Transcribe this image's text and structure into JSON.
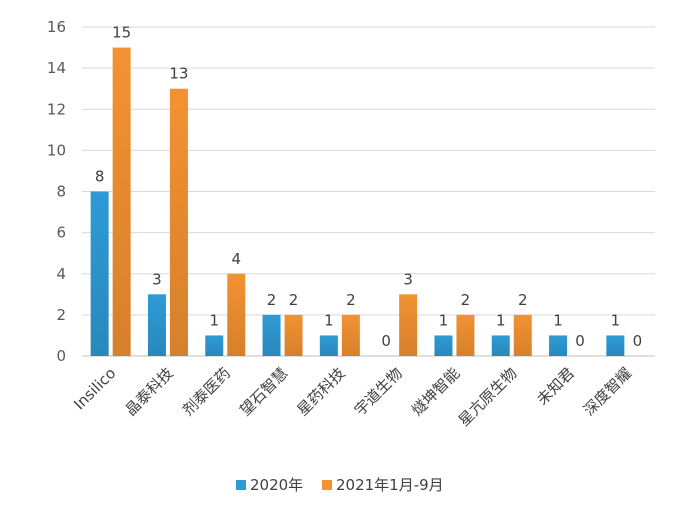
{
  "chart_data": {
    "type": "bar",
    "categories": [
      "Insilico",
      "晶泰科技",
      "剂泰医药",
      "望石智慧",
      "星药科技",
      "宇道生物",
      "燧坤智能",
      "星亢原生物",
      "未知君",
      "深度智耀"
    ],
    "series": [
      {
        "name": "2020年",
        "values": [
          8,
          3,
          1,
          2,
          1,
          0,
          1,
          1,
          1,
          1
        ],
        "color": "#2E9BD6"
      },
      {
        "name": "2021年1月-9月",
        "values": [
          15,
          13,
          4,
          2,
          2,
          3,
          2,
          2,
          0,
          0
        ],
        "color": "#F39232"
      }
    ],
    "yticks": [
      0,
      2,
      4,
      6,
      8,
      10,
      12,
      14,
      16
    ],
    "ylim": [
      0,
      16
    ],
    "grid": true,
    "legend_position": "bottom",
    "gridline_color": "#d9d9d9"
  }
}
